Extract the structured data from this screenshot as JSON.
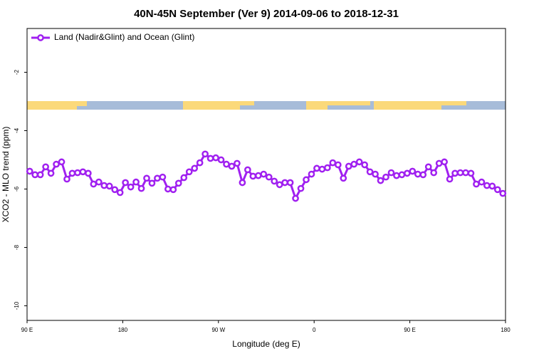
{
  "chart_data": {
    "type": "line",
    "title": "40N-45N September (Ver 9)   2014-09-06 to 2018-12-31",
    "x_label": "Longitude (deg E)",
    "y_label": "XCO2 - MLO trend (ppm)",
    "legend": "top-left",
    "xlim": [
      90,
      540
    ],
    "xticks": [
      {
        "value": 90,
        "label": "90 E"
      },
      {
        "value": 180,
        "label": "180"
      },
      {
        "value": 270,
        "label": "90 W"
      },
      {
        "value": 360,
        "label": "0"
      },
      {
        "value": 450,
        "label": "90 E"
      },
      {
        "value": 540,
        "label": "180"
      }
    ],
    "ylim": [
      -10.5,
      -0.5
    ],
    "yticks": [
      -2,
      -4,
      -6,
      -8,
      -10
    ],
    "x": [
      92.5,
      97.5,
      102.5,
      107.5,
      112.5,
      117.5,
      122.5,
      127.5,
      132.5,
      137.5,
      142.5,
      147.5,
      152.5,
      157.5,
      162.5,
      167.5,
      172.5,
      177.5,
      182.5,
      187.5,
      192.5,
      197.5,
      202.5,
      207.5,
      212.5,
      217.5,
      222.5,
      227.5,
      232.5,
      237.5,
      242.5,
      247.5,
      252.5,
      257.5,
      262.5,
      267.5,
      272.5,
      277.5,
      282.5,
      287.5,
      292.5,
      297.5,
      302.5,
      307.5,
      312.5,
      317.5,
      322.5,
      327.5,
      332.5,
      337.5,
      342.5,
      347.5,
      352.5,
      357.5,
      362.5,
      367.5,
      372.5,
      377.5,
      382.5,
      387.5,
      392.5,
      397.5,
      402.5,
      407.5,
      412.5,
      417.5,
      422.5,
      427.5,
      432.5,
      437.5,
      442.5,
      447.5,
      452.5,
      457.5,
      462.5,
      467.5,
      472.5,
      477.5,
      482.5,
      487.5,
      492.5,
      497.5,
      502.5,
      507.5,
      512.5,
      517.5,
      522.5,
      527.5,
      532.5,
      537.5
    ],
    "series": [
      {
        "name": "Land (Nadir&Glint) and Ocean (Glint)",
        "color": "#a020f0",
        "values": [
          -5.39,
          -5.51,
          -5.51,
          -5.24,
          -5.46,
          -5.15,
          -5.07,
          -5.66,
          -5.46,
          -5.44,
          -5.41,
          -5.46,
          -5.83,
          -5.76,
          -5.88,
          -5.9,
          -6.02,
          -6.12,
          -5.78,
          -5.93,
          -5.76,
          -5.98,
          -5.63,
          -5.8,
          -5.63,
          -5.59,
          -6.0,
          -6.02,
          -5.8,
          -5.61,
          -5.41,
          -5.29,
          -5.1,
          -4.8,
          -4.95,
          -4.93,
          -5.0,
          -5.15,
          -5.22,
          -5.12,
          -5.78,
          -5.34,
          -5.56,
          -5.54,
          -5.49,
          -5.59,
          -5.73,
          -5.85,
          -5.78,
          -5.78,
          -6.32,
          -5.98,
          -5.68,
          -5.49,
          -5.29,
          -5.32,
          -5.27,
          -5.1,
          -5.17,
          -5.63,
          -5.22,
          -5.15,
          -5.07,
          -5.17,
          -5.41,
          -5.49,
          -5.71,
          -5.59,
          -5.44,
          -5.54,
          -5.51,
          -5.46,
          -5.39,
          -5.49,
          -5.51,
          -5.24,
          -5.44,
          -5.12,
          -5.07,
          -5.66,
          -5.46,
          -5.44,
          -5.44,
          -5.46,
          -5.83,
          -5.76,
          -5.88,
          -5.9,
          -6.02,
          -6.15
        ]
      }
    ]
  }
}
